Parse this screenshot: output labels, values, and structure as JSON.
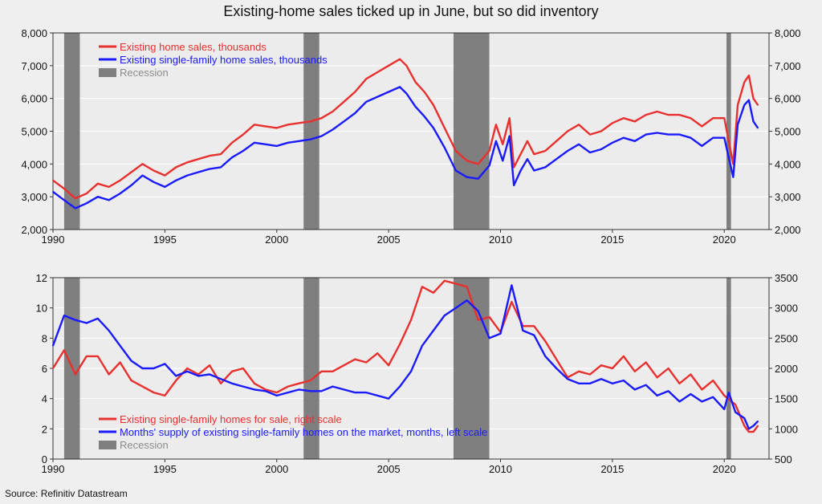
{
  "figure_title": "Existing-home sales ticked up in June, but so did inventory",
  "source": "Source: Refinitiv Datastream",
  "colors": {
    "red": "#e8302e",
    "blue": "#1a1aff",
    "recession": "#7f7f7f",
    "plot_bg": "#ececec",
    "grid": "#ffffff"
  },
  "chart_data": [
    {
      "type": "line",
      "title": "",
      "xlim": [
        1990,
        2022
      ],
      "x_ticks": [
        "1990",
        "1995",
        "2000",
        "2005",
        "2010",
        "2015",
        "2020"
      ],
      "ylim_left": [
        2000,
        8000
      ],
      "y_ticks_left": [
        "2,000",
        "3,000",
        "4,000",
        "5,000",
        "6,000",
        "7,000",
        "8,000"
      ],
      "ylim_right": [
        2000,
        8000
      ],
      "y_ticks_right": [
        "2,000",
        "3,000",
        "4,000",
        "5,000",
        "6,000",
        "7,000",
        "8,000"
      ],
      "grid": true,
      "legend_position": "top-left",
      "recessions": [
        [
          1990.5,
          1991.2
        ],
        [
          2001.2,
          2001.9
        ],
        [
          2007.9,
          2009.5
        ],
        [
          2020.1,
          2020.3
        ]
      ],
      "series": [
        {
          "name": "Existing home sales, thousands",
          "color": "#e8302e",
          "axis": "left",
          "x": [
            1990,
            1990.5,
            1991,
            1991.5,
            1992,
            1992.5,
            1993,
            1993.5,
            1994,
            1994.5,
            1995,
            1995.5,
            1996,
            1996.5,
            1997,
            1997.5,
            1998,
            1998.5,
            1999,
            1999.5,
            2000,
            2000.5,
            2001,
            2001.5,
            2002,
            2002.5,
            2003,
            2003.5,
            2004,
            2004.5,
            2005,
            2005.5,
            2005.8,
            2006.2,
            2006.6,
            2007,
            2007.5,
            2008,
            2008.5,
            2009,
            2009.5,
            2009.8,
            2010.1,
            2010.4,
            2010.6,
            2010.9,
            2011.2,
            2011.5,
            2012,
            2012.5,
            2013,
            2013.5,
            2014,
            2014.5,
            2015,
            2015.5,
            2016,
            2016.5,
            2017,
            2017.5,
            2018,
            2018.5,
            2019,
            2019.5,
            2020,
            2020.2,
            2020.4,
            2020.6,
            2020.9,
            2021.1,
            2021.3,
            2021.5
          ],
          "values": [
            3500,
            3250,
            2950,
            3100,
            3400,
            3300,
            3500,
            3750,
            4000,
            3800,
            3650,
            3900,
            4050,
            4150,
            4250,
            4300,
            4650,
            4900,
            5200,
            5150,
            5100,
            5200,
            5250,
            5300,
            5400,
            5600,
            5900,
            6200,
            6600,
            6800,
            7000,
            7200,
            7000,
            6500,
            6200,
            5800,
            5100,
            4400,
            4100,
            4000,
            4400,
            5200,
            4600,
            5400,
            3900,
            4300,
            4700,
            4300,
            4400,
            4700,
            5000,
            5200,
            4900,
            5000,
            5250,
            5400,
            5300,
            5500,
            5600,
            5500,
            5500,
            5400,
            5150,
            5400,
            5400,
            4700,
            4000,
            5800,
            6500,
            6700,
            6000,
            5800
          ]
        },
        {
          "name": "Existing single-family home sales, thousands",
          "color": "#1a1aff",
          "axis": "left",
          "x": [
            1990,
            1990.5,
            1991,
            1991.5,
            1992,
            1992.5,
            1993,
            1993.5,
            1994,
            1994.5,
            1995,
            1995.5,
            1996,
            1996.5,
            1997,
            1997.5,
            1998,
            1998.5,
            1999,
            1999.5,
            2000,
            2000.5,
            2001,
            2001.5,
            2002,
            2002.5,
            2003,
            2003.5,
            2004,
            2004.5,
            2005,
            2005.5,
            2005.8,
            2006.2,
            2006.6,
            2007,
            2007.5,
            2008,
            2008.5,
            2009,
            2009.5,
            2009.8,
            2010.1,
            2010.4,
            2010.6,
            2010.9,
            2011.2,
            2011.5,
            2012,
            2012.5,
            2013,
            2013.5,
            2014,
            2014.5,
            2015,
            2015.5,
            2016,
            2016.5,
            2017,
            2017.5,
            2018,
            2018.5,
            2019,
            2019.5,
            2020,
            2020.2,
            2020.4,
            2020.6,
            2020.9,
            2021.1,
            2021.3,
            2021.5
          ],
          "values": [
            3150,
            2900,
            2650,
            2800,
            3000,
            2900,
            3100,
            3350,
            3650,
            3450,
            3300,
            3500,
            3650,
            3750,
            3850,
            3900,
            4200,
            4400,
            4650,
            4600,
            4550,
            4650,
            4700,
            4750,
            4850,
            5050,
            5300,
            5550,
            5900,
            6050,
            6200,
            6350,
            6150,
            5750,
            5450,
            5100,
            4500,
            3800,
            3600,
            3550,
            3950,
            4700,
            4100,
            4850,
            3350,
            3800,
            4150,
            3800,
            3900,
            4150,
            4400,
            4600,
            4350,
            4450,
            4650,
            4800,
            4700,
            4900,
            4950,
            4900,
            4900,
            4800,
            4550,
            4800,
            4800,
            4200,
            3600,
            5200,
            5800,
            5950,
            5300,
            5100
          ]
        }
      ],
      "legend": [
        {
          "label": "Existing home sales, thousands",
          "kind": "line",
          "color": "#e8302e"
        },
        {
          "label": "Existing single-family home sales, thousands",
          "kind": "line",
          "color": "#1a1aff"
        },
        {
          "label": "Recession",
          "kind": "bar",
          "color": "#7f7f7f"
        }
      ]
    },
    {
      "type": "line",
      "title": "",
      "xlim": [
        1990,
        2022
      ],
      "x_ticks": [
        "1990",
        "1995",
        "2000",
        "2005",
        "2010",
        "2015",
        "2020"
      ],
      "ylim_left": [
        0,
        12
      ],
      "y_ticks_left": [
        "0",
        "2",
        "4",
        "6",
        "8",
        "10",
        "12"
      ],
      "ylim_right": [
        500,
        3500
      ],
      "y_ticks_right": [
        "500",
        "1000",
        "1500",
        "2000",
        "2500",
        "3000",
        "3500"
      ],
      "grid": true,
      "legend_position": "bottom-left",
      "recessions": [
        [
          1990.5,
          1991.2
        ],
        [
          2001.2,
          2001.9
        ],
        [
          2007.9,
          2009.5
        ],
        [
          2020.1,
          2020.3
        ]
      ],
      "series": [
        {
          "name": "Existing single-family homes for sale, right scale",
          "color": "#e8302e",
          "axis": "right",
          "x": [
            1990,
            1990.5,
            1991,
            1991.5,
            1992,
            1992.5,
            1993,
            1993.5,
            1994,
            1994.5,
            1995,
            1995.5,
            1996,
            1996.5,
            1997,
            1997.5,
            1998,
            1998.5,
            1999,
            1999.5,
            2000,
            2000.5,
            2001,
            2001.5,
            2002,
            2002.5,
            2003,
            2003.5,
            2004,
            2004.5,
            2005,
            2005.5,
            2006,
            2006.5,
            2007,
            2007.5,
            2008,
            2008.5,
            2009,
            2009.5,
            2010,
            2010.5,
            2011,
            2011.5,
            2012,
            2012.5,
            2013,
            2013.5,
            2014,
            2014.5,
            2015,
            2015.5,
            2016,
            2016.5,
            2017,
            2017.5,
            2018,
            2018.5,
            2019,
            2019.5,
            2020,
            2020.5,
            2020.9,
            2021.1,
            2021.3,
            2021.5
          ],
          "values": [
            2000,
            2300,
            1900,
            2200,
            2200,
            1900,
            2100,
            1800,
            1700,
            1600,
            1550,
            1800,
            2000,
            1900,
            2050,
            1750,
            1950,
            2000,
            1750,
            1650,
            1600,
            1700,
            1750,
            1800,
            1950,
            1950,
            2050,
            2150,
            2100,
            2250,
            2050,
            2400,
            2800,
            3350,
            3250,
            3450,
            3400,
            3350,
            2800,
            2850,
            2600,
            3100,
            2700,
            2700,
            2450,
            2150,
            1850,
            1950,
            1900,
            2050,
            2000,
            2200,
            1950,
            2100,
            1850,
            2000,
            1750,
            1900,
            1650,
            1800,
            1550,
            1400,
            1050,
            950,
            950,
            1050
          ]
        },
        {
          "name": "Months' supply of existing single-family homes on the market, months, left scale",
          "color": "#1a1aff",
          "axis": "left",
          "x": [
            1990,
            1990.5,
            1991,
            1991.5,
            1992,
            1992.5,
            1993,
            1993.5,
            1994,
            1994.5,
            1995,
            1995.5,
            1996,
            1996.5,
            1997,
            1997.5,
            1998,
            1998.5,
            1999,
            1999.5,
            2000,
            2000.5,
            2001,
            2001.5,
            2002,
            2002.5,
            2003,
            2003.5,
            2004,
            2004.5,
            2005,
            2005.5,
            2006,
            2006.5,
            2007,
            2007.5,
            2008,
            2008.5,
            2009,
            2009.5,
            2010,
            2010.5,
            2011,
            2011.5,
            2012,
            2012.5,
            2013,
            2013.5,
            2014,
            2014.5,
            2015,
            2015.5,
            2016,
            2016.5,
            2017,
            2017.5,
            2018,
            2018.5,
            2019,
            2019.5,
            2020,
            2020.2,
            2020.5,
            2020.9,
            2021.1,
            2021.3,
            2021.5
          ],
          "values": [
            7.5,
            9.5,
            9.2,
            9.0,
            9.3,
            8.5,
            7.5,
            6.5,
            6.0,
            6.0,
            6.3,
            5.5,
            5.8,
            5.5,
            5.6,
            5.3,
            5.0,
            4.8,
            4.6,
            4.5,
            4.2,
            4.4,
            4.6,
            4.5,
            4.5,
            4.8,
            4.6,
            4.4,
            4.4,
            4.2,
            4.0,
            4.8,
            5.8,
            7.5,
            8.5,
            9.5,
            10.0,
            10.5,
            9.8,
            8.0,
            8.3,
            11.5,
            8.5,
            8.2,
            6.8,
            6.0,
            5.3,
            5.0,
            5.0,
            5.3,
            5.0,
            5.2,
            4.6,
            4.9,
            4.2,
            4.5,
            3.8,
            4.3,
            3.8,
            4.1,
            3.3,
            4.4,
            3.1,
            2.7,
            2.0,
            2.2,
            2.5
          ]
        }
      ],
      "legend": [
        {
          "label": "Existing single-family homes for sale, right scale",
          "kind": "line",
          "color": "#e8302e"
        },
        {
          "label": "Months' supply of existing single-family homes on the market, months, left scale",
          "kind": "line",
          "color": "#1a1aff"
        },
        {
          "label": "Recession",
          "kind": "bar",
          "color": "#7f7f7f"
        }
      ]
    }
  ]
}
